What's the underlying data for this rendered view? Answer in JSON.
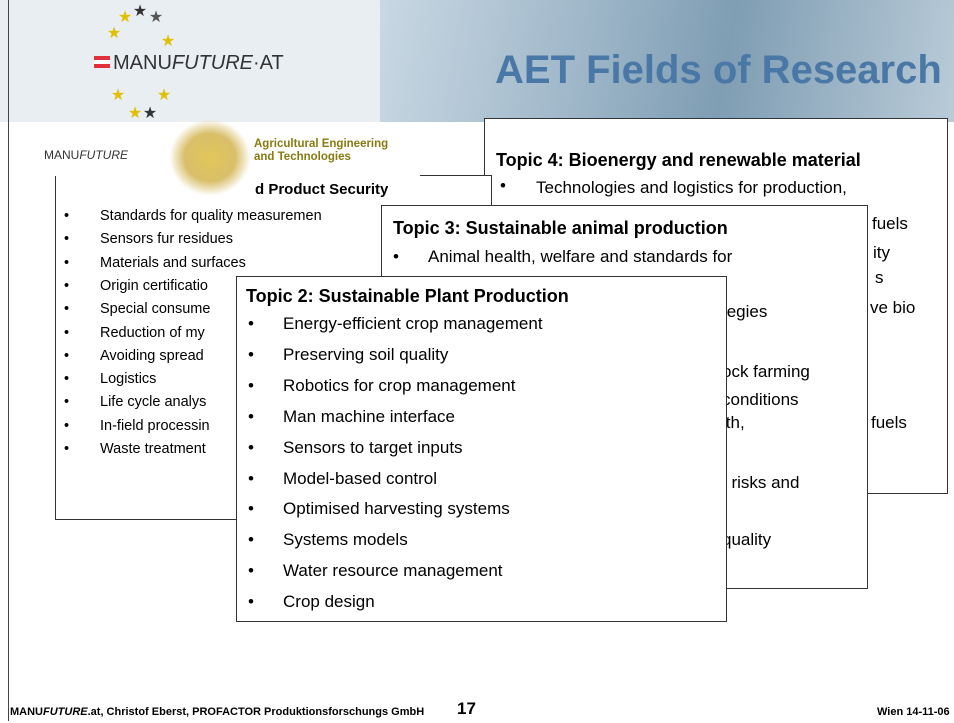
{
  "logo": {
    "manu": "MANU",
    "future": "FUTURE",
    "suffix": "·AT"
  },
  "title": "AET Fields of Research",
  "aet_logo": {
    "manu": "MANU",
    "future": "FUTURE",
    "line1": "Agricultural Engineering",
    "line2": "and Technologies"
  },
  "topic4": {
    "title": "Topic 4: Bioenergy and renewable material",
    "items": [
      "Technologies and logistics for production, preservation and storage"
    ],
    "fragments": [
      "fuels",
      "ity",
      "s",
      "ve bio",
      "fuels"
    ]
  },
  "topic1": {
    "title": "d Product Security",
    "items": [
      "Standards for quality measuremen",
      "Sensors fur residues",
      "Materials and surfaces",
      "Origin certificatio",
      "Special consume",
      "Reduction of my",
      "Avoiding spread",
      "Logistics",
      "Life cycle analys",
      "In-field processin",
      "Waste treatment"
    ]
  },
  "topic3": {
    "title": "Topic 3: Sustainable animal production",
    "items": [
      "Animal health, welfare and standards for"
    ],
    "fragments": [
      "tegies",
      "ock farming",
      "conditions",
      "lth,",
      "f risks and",
      "quality"
    ]
  },
  "topic2": {
    "title": "Topic 2: Sustainable Plant Production",
    "items": [
      "Energy-efficient crop management",
      "Preserving soil quality",
      "Robotics for crop management",
      "Man machine interface",
      "Sensors to target inputs",
      "Model-based control",
      "Optimised harvesting systems",
      "Systems models",
      "Water resource management",
      "Crop design"
    ]
  },
  "footer": {
    "manu": "MANU",
    "future": "FUTURE",
    "rest": ".at, Christof Eberst, PROFACTOR Produktionsforschungs GmbH",
    "page": "17",
    "date": "Wien 14-11-06"
  }
}
